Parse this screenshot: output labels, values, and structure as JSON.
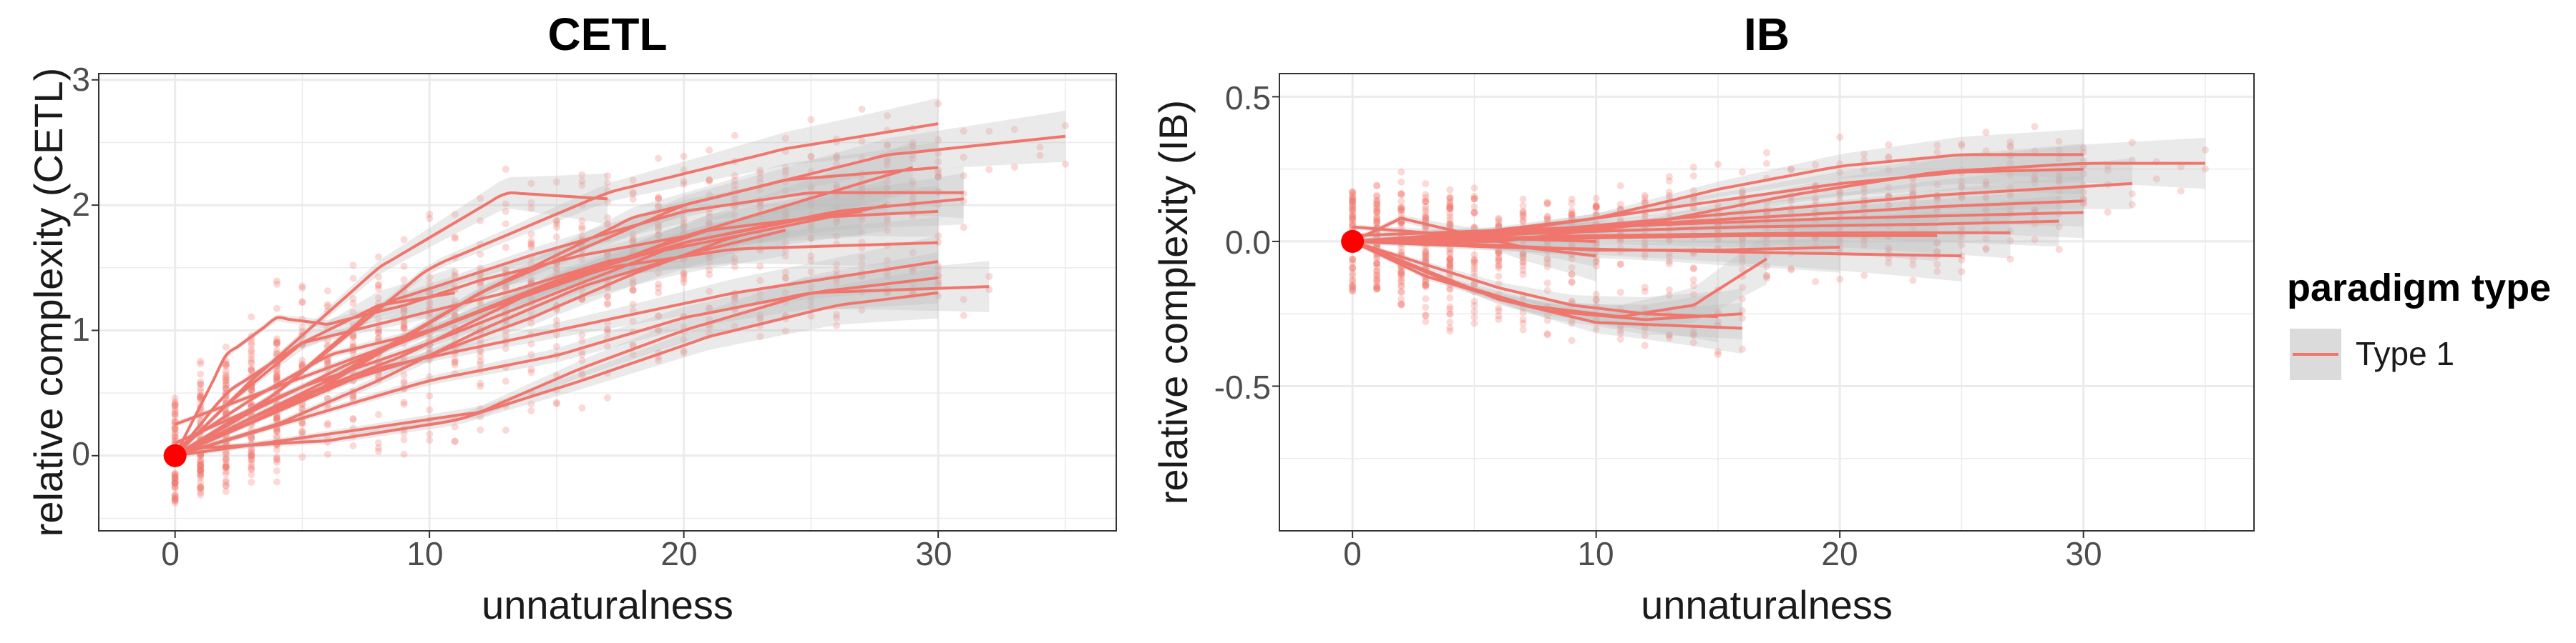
{
  "colors": {
    "series": "#F0766D",
    "ribbon": "#BEBEBE",
    "start_point": "#FF0000",
    "grid": "#EBEBEB",
    "panel_border": "#333333"
  },
  "legend": {
    "title": "paradigm type",
    "entries": [
      {
        "label": "Type 1"
      }
    ]
  },
  "chart_data": [
    {
      "type": "scatter",
      "title": "CETL",
      "xlabel": "unnaturalness",
      "ylabel": "relative complexity (CETL)",
      "xlim": [
        -3,
        37
      ],
      "ylim": [
        -0.6,
        3.05
      ],
      "xticks": [
        0,
        10,
        20,
        30
      ],
      "xtick_labels": [
        "0",
        "10",
        "20",
        "30"
      ],
      "yticks": [
        0,
        1,
        2,
        3
      ],
      "ytick_labels": [
        "0",
        "1",
        "2",
        "3"
      ],
      "start_point": {
        "x": 0,
        "y": 0
      },
      "series": [
        {
          "name": "Type 1",
          "trend_lines": [
            {
              "x": [
                0,
                4,
                10,
                17,
                24,
                30
              ],
              "y": [
                0.0,
                0.5,
                1.5,
                2.1,
                2.45,
                2.65
              ]
            },
            {
              "x": [
                0,
                5,
                12,
                20,
                28,
                35
              ],
              "y": [
                0.0,
                0.45,
                1.3,
                2.0,
                2.4,
                2.55
              ]
            },
            {
              "x": [
                0,
                3,
                8,
                13,
                17
              ],
              "y": [
                0.0,
                0.6,
                1.5,
                2.1,
                2.05
              ]
            },
            {
              "x": [
                0,
                4,
                8,
                14,
                20,
                25,
                31
              ],
              "y": [
                0.0,
                0.5,
                1.2,
                1.6,
                1.95,
                2.1,
                2.1
              ]
            },
            {
              "x": [
                0,
                6,
                12,
                18,
                24,
                30
              ],
              "y": [
                0.0,
                0.6,
                1.3,
                1.9,
                2.2,
                2.3
              ]
            },
            {
              "x": [
                0,
                3,
                6,
                10,
                15,
                20,
                26,
                31
              ],
              "y": [
                0.05,
                0.45,
                0.8,
                1.0,
                1.4,
                1.7,
                1.95,
                2.05
              ]
            },
            {
              "x": [
                0,
                5,
                10,
                15,
                20,
                25,
                30
              ],
              "y": [
                0.1,
                0.55,
                0.9,
                1.3,
                1.7,
                1.9,
                1.95
              ]
            },
            {
              "x": [
                0,
                4,
                9,
                15,
                21,
                27
              ],
              "y": [
                0.0,
                0.4,
                0.8,
                1.4,
                1.8,
                1.95
              ]
            },
            {
              "x": [
                0,
                3,
                7,
                12,
                17,
                22,
                30
              ],
              "y": [
                0.0,
                0.35,
                0.75,
                1.15,
                1.5,
                1.65,
                1.7
              ]
            },
            {
              "x": [
                0,
                8,
                15,
                22,
                30
              ],
              "y": [
                0.0,
                0.7,
                1.0,
                1.3,
                1.55
              ]
            },
            {
              "x": [
                0,
                5,
                10,
                15,
                20,
                25,
                32
              ],
              "y": [
                0.0,
                0.3,
                0.6,
                0.8,
                1.1,
                1.3,
                1.35
              ]
            },
            {
              "x": [
                0,
                7,
                12,
                16,
                20,
                25,
                30
              ],
              "y": [
                0.0,
                0.2,
                0.35,
                0.7,
                1.0,
                1.3,
                1.42
              ]
            },
            {
              "x": [
                0,
                6,
                11,
                16,
                21,
                26,
                30
              ],
              "y": [
                0.05,
                0.12,
                0.28,
                0.6,
                0.95,
                1.2,
                1.3
              ]
            },
            {
              "x": [
                0,
                2,
                4,
                6,
                9,
                12,
                16,
                20
              ],
              "y": [
                0.0,
                0.8,
                1.1,
                1.05,
                1.2,
                1.4,
                1.6,
                1.75
              ]
            },
            {
              "x": [
                0,
                2,
                5,
                9,
                13,
                17,
                22
              ],
              "y": [
                0.0,
                0.5,
                0.9,
                1.1,
                1.3,
                1.55,
                1.75
              ]
            },
            {
              "x": [
                0,
                3,
                6,
                10,
                14,
                18,
                22,
                28
              ],
              "y": [
                0.0,
                0.3,
                0.55,
                0.8,
                1.1,
                1.45,
                1.75,
                2.0
              ]
            },
            {
              "x": [
                0,
                4,
                8,
                12,
                16,
                20,
                24
              ],
              "y": [
                0.0,
                0.25,
                0.6,
                1.0,
                1.35,
                1.6,
                1.8
              ]
            },
            {
              "x": [
                0,
                10,
                20,
                29
              ],
              "y": [
                0.25,
                1.0,
                1.75,
                2.3
              ]
            },
            {
              "x": [
                0,
                2,
                5,
                8,
                11
              ],
              "y": [
                0.0,
                0.4,
                0.9,
                1.2,
                1.3
              ]
            }
          ]
        }
      ]
    },
    {
      "type": "scatter",
      "title": "IB",
      "xlabel": "unnaturalness",
      "ylabel": "relative complexity (IB)",
      "xlim": [
        -3,
        37
      ],
      "ylim": [
        -1.0,
        0.58
      ],
      "xticks": [
        0,
        10,
        20,
        30
      ],
      "xtick_labels": [
        "0",
        "10",
        "20",
        "30"
      ],
      "yticks": [
        -0.5,
        0.0,
        0.5
      ],
      "ytick_labels": [
        "-0.5",
        "0.0",
        "0.5"
      ],
      "start_point": {
        "x": 0,
        "y": 0
      },
      "series": [
        {
          "name": "Type 1",
          "trend_lines": [
            {
              "x": [
                0,
                5,
                10,
                15,
                20,
                25,
                30
              ],
              "y": [
                0.0,
                0.02,
                0.08,
                0.18,
                0.26,
                0.3,
                0.3
              ]
            },
            {
              "x": [
                0,
                6,
                12,
                18,
                24,
                30,
                35
              ],
              "y": [
                0.0,
                0.0,
                0.06,
                0.16,
                0.24,
                0.27,
                0.27
              ]
            },
            {
              "x": [
                0,
                5,
                10,
                15,
                20,
                25,
                30
              ],
              "y": [
                0.0,
                0.03,
                0.08,
                0.14,
                0.2,
                0.24,
                0.25
              ]
            },
            {
              "x": [
                0,
                8,
                16,
                24,
                32
              ],
              "y": [
                0.0,
                0.04,
                0.1,
                0.16,
                0.2
              ]
            },
            {
              "x": [
                0,
                6,
                12,
                18,
                24,
                30
              ],
              "y": [
                0.0,
                0.02,
                0.06,
                0.09,
                0.12,
                0.14
              ]
            },
            {
              "x": [
                0,
                10,
                20,
                30
              ],
              "y": [
                0.02,
                0.05,
                0.08,
                0.1
              ]
            },
            {
              "x": [
                0,
                8,
                16,
                24,
                29
              ],
              "y": [
                0.0,
                0.03,
                0.05,
                0.06,
                0.07
              ]
            },
            {
              "x": [
                0,
                10,
                20,
                27
              ],
              "y": [
                0.0,
                0.02,
                0.03,
                0.03
              ]
            },
            {
              "x": [
                0,
                8,
                16,
                24
              ],
              "y": [
                0.0,
                0.01,
                0.02,
                0.02
              ]
            },
            {
              "x": [
                0,
                6,
                12,
                18,
                25
              ],
              "y": [
                0.0,
                -0.02,
                -0.03,
                -0.04,
                -0.05
              ]
            },
            {
              "x": [
                0,
                5,
                10,
                15,
                20
              ],
              "y": [
                0.0,
                -0.01,
                -0.03,
                -0.03,
                -0.02
              ]
            },
            {
              "x": [
                0,
                3,
                7,
                11,
                14,
                17
              ],
              "y": [
                0.0,
                -0.12,
                -0.22,
                -0.26,
                -0.22,
                -0.06
              ]
            },
            {
              "x": [
                0,
                4,
                8,
                12,
                16
              ],
              "y": [
                0.0,
                -0.14,
                -0.24,
                -0.27,
                -0.25
              ]
            },
            {
              "x": [
                0,
                3,
                6,
                10,
                13,
                16
              ],
              "y": [
                0.0,
                -0.1,
                -0.2,
                -0.28,
                -0.29,
                -0.3
              ]
            },
            {
              "x": [
                0,
                3,
                6,
                9,
                12,
                15
              ],
              "y": [
                0.0,
                -0.08,
                -0.16,
                -0.22,
                -0.25,
                -0.26
              ]
            },
            {
              "x": [
                0,
                2,
                4,
                7,
                10
              ],
              "y": [
                0.0,
                0.08,
                0.04,
                -0.02,
                -0.05
              ]
            },
            {
              "x": [
                0,
                3,
                6,
                10
              ],
              "y": [
                0.05,
                0.03,
                0.01,
                0.0
              ]
            }
          ]
        }
      ]
    }
  ]
}
